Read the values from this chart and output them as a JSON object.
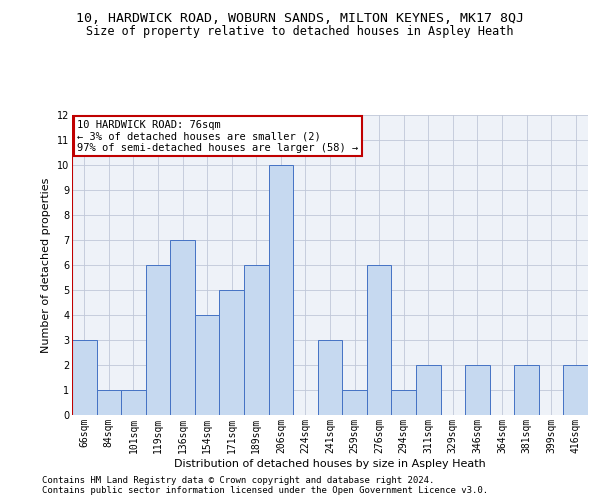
{
  "title_line1": "10, HARDWICK ROAD, WOBURN SANDS, MILTON KEYNES, MK17 8QJ",
  "title_line2": "Size of property relative to detached houses in Aspley Heath",
  "xlabel": "Distribution of detached houses by size in Aspley Heath",
  "ylabel": "Number of detached properties",
  "footer1": "Contains HM Land Registry data © Crown copyright and database right 2024.",
  "footer2": "Contains public sector information licensed under the Open Government Licence v3.0.",
  "annotation_line1": "10 HARDWICK ROAD: 76sqm",
  "annotation_line2": "← 3% of detached houses are smaller (2)",
  "annotation_line3": "97% of semi-detached houses are larger (58) →",
  "categories": [
    "66sqm",
    "84sqm",
    "101sqm",
    "119sqm",
    "136sqm",
    "154sqm",
    "171sqm",
    "189sqm",
    "206sqm",
    "224sqm",
    "241sqm",
    "259sqm",
    "276sqm",
    "294sqm",
    "311sqm",
    "329sqm",
    "346sqm",
    "364sqm",
    "381sqm",
    "399sqm",
    "416sqm"
  ],
  "values": [
    3,
    1,
    1,
    6,
    7,
    4,
    5,
    6,
    10,
    0,
    3,
    1,
    6,
    1,
    2,
    0,
    2,
    0,
    2,
    0,
    2
  ],
  "bar_color": "#c6d9f0",
  "bar_edge_color": "#4472c4",
  "vline_color": "#c00000",
  "ylim": [
    0,
    12
  ],
  "yticks": [
    0,
    1,
    2,
    3,
    4,
    5,
    6,
    7,
    8,
    9,
    10,
    11,
    12
  ],
  "grid_color": "#c0c8d8",
  "background_color": "#eef2f8",
  "annotation_box_color": "#c00000",
  "title1_fontsize": 9.5,
  "title2_fontsize": 8.5,
  "axis_label_fontsize": 8,
  "tick_fontsize": 7,
  "annotation_fontsize": 7.5,
  "footer_fontsize": 6.5
}
